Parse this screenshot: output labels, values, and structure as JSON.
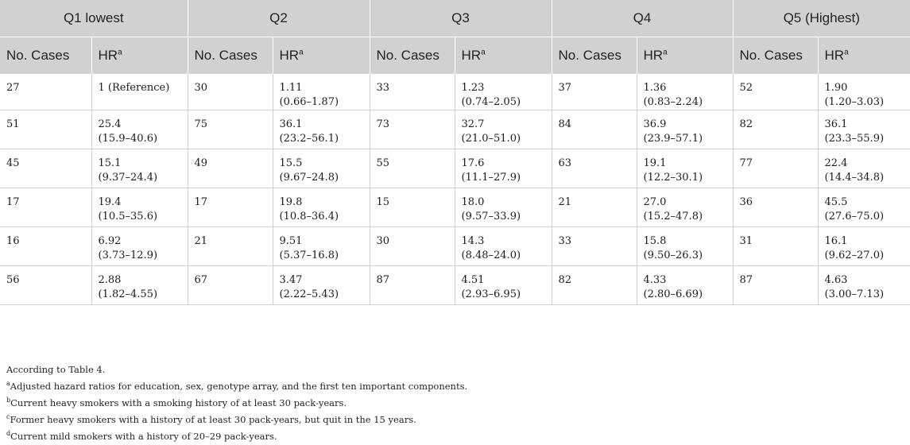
{
  "groups": [
    "Q1 lowest",
    "Q2",
    "Q3",
    "Q4",
    "Q5 (Highest)"
  ],
  "subheaders": {
    "cases": "No. Cases",
    "hr": "HR",
    "hr_sup": "a"
  },
  "rows": [
    [
      {
        "cases": "27",
        "hr": "1 (Reference)",
        "ci": ""
      },
      {
        "cases": "30",
        "hr": "1.11",
        "ci": "(0.66–1.87)"
      },
      {
        "cases": "33",
        "hr": "1.23",
        "ci": "(0.74–2.05)"
      },
      {
        "cases": "37",
        "hr": "1.36",
        "ci": "(0.83–2.24)"
      },
      {
        "cases": "52",
        "hr": "1.90",
        "ci": "(1.20–3.03)"
      }
    ],
    [
      {
        "cases": "51",
        "hr": "25.4",
        "ci": "(15.9–40.6)"
      },
      {
        "cases": "75",
        "hr": "36.1",
        "ci": "(23.2–56.1)"
      },
      {
        "cases": "73",
        "hr": "32.7",
        "ci": "(21.0–51.0)"
      },
      {
        "cases": "84",
        "hr": "36.9",
        "ci": "(23.9–57.1)"
      },
      {
        "cases": "82",
        "hr": "36.1",
        "ci": "(23.3–55.9)"
      }
    ],
    [
      {
        "cases": "45",
        "hr": "15.1",
        "ci": "(9.37–24.4)"
      },
      {
        "cases": "49",
        "hr": "15.5",
        "ci": "(9.67–24.8)"
      },
      {
        "cases": "55",
        "hr": "17.6",
        "ci": "(11.1–27.9)"
      },
      {
        "cases": "63",
        "hr": "19.1",
        "ci": "(12.2–30.1)"
      },
      {
        "cases": "77",
        "hr": "22.4",
        "ci": "(14.4–34.8)"
      }
    ],
    [
      {
        "cases": "17",
        "hr": "19.4",
        "ci": "(10.5–35.6)"
      },
      {
        "cases": "17",
        "hr": "19.8",
        "ci": "(10.8–36.4)"
      },
      {
        "cases": "15",
        "hr": "18.0",
        "ci": "(9.57–33.9)"
      },
      {
        "cases": "21",
        "hr": "27.0",
        "ci": "(15.2–47.8)"
      },
      {
        "cases": "36",
        "hr": "45.5",
        "ci": "(27.6–75.0)"
      }
    ],
    [
      {
        "cases": "16",
        "hr": "6.92",
        "ci": "(3.73–12.9)"
      },
      {
        "cases": "21",
        "hr": "9.51",
        "ci": "(5.37–16.8)"
      },
      {
        "cases": "30",
        "hr": "14.3",
        "ci": "(8.48–24.0)"
      },
      {
        "cases": "33",
        "hr": "15.8",
        "ci": "(9.50–26.3)"
      },
      {
        "cases": "31",
        "hr": "16.1",
        "ci": "(9.62–27.0)"
      }
    ],
    [
      {
        "cases": "56",
        "hr": "2.88",
        "ci": "(1.82–4.55)"
      },
      {
        "cases": "67",
        "hr": "3.47",
        "ci": "(2.22–5.43)"
      },
      {
        "cases": "87",
        "hr": "4.51",
        "ci": "(2.93–6.95)"
      },
      {
        "cases": "82",
        "hr": "4.33",
        "ci": "(2.80–6.69)"
      },
      {
        "cases": "87",
        "hr": "4.63",
        "ci": "(3.00–7.13)"
      }
    ]
  ],
  "notes": [
    {
      "sup": "",
      "text": "According to Table 4."
    },
    {
      "sup": "a",
      "text": "Adjusted hazard ratios for education, sex, genotype array, and the first ten important components."
    },
    {
      "sup": "b",
      "text": "Current heavy smokers with a smoking history of at least 30 pack-years."
    },
    {
      "sup": "c",
      "text": "Former heavy smokers with a history of at least 30 pack-years, but quit in the 15 years."
    },
    {
      "sup": "d",
      "text": "Current mild smokers with a history of 20–29 pack-years."
    }
  ]
}
